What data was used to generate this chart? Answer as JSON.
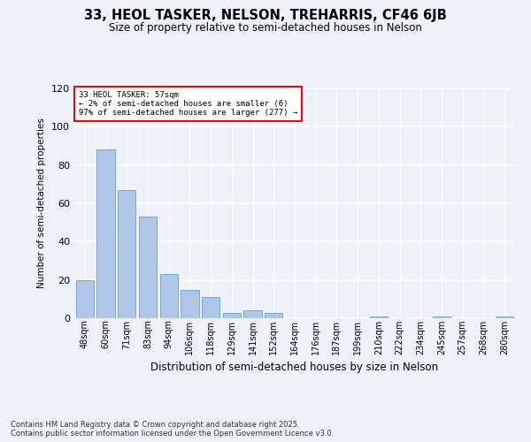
{
  "title": "33, HEOL TASKER, NELSON, TREHARRIS, CF46 6JB",
  "subtitle": "Size of property relative to semi-detached houses in Nelson",
  "xlabel": "Distribution of semi-detached houses by size in Nelson",
  "ylabel": "Number of semi-detached properties",
  "categories": [
    "48sqm",
    "60sqm",
    "71sqm",
    "83sqm",
    "94sqm",
    "106sqm",
    "118sqm",
    "129sqm",
    "141sqm",
    "152sqm",
    "164sqm",
    "176sqm",
    "187sqm",
    "199sqm",
    "210sqm",
    "222sqm",
    "234sqm",
    "245sqm",
    "257sqm",
    "268sqm",
    "280sqm"
  ],
  "values": [
    20,
    88,
    67,
    53,
    23,
    15,
    11,
    3,
    4,
    3,
    0,
    0,
    0,
    0,
    1,
    0,
    0,
    1,
    0,
    0,
    1
  ],
  "bar_color": "#aec6e8",
  "bar_edge_color": "#6a9fd0",
  "annotation_text_line1": "33 HEOL TASKER: 57sqm",
  "annotation_text_line2": "← 2% of semi-detached houses are smaller (6)",
  "annotation_text_line3": "97% of semi-detached houses are larger (277) →",
  "ylim": [
    0,
    120
  ],
  "yticks": [
    0,
    20,
    40,
    60,
    80,
    100,
    120
  ],
  "background_color": "#eef2f8",
  "plot_bg_color": "#eef2f8",
  "grid_color": "#ffffff",
  "footer_line1": "Contains HM Land Registry data © Crown copyright and database right 2025.",
  "footer_line2": "Contains public sector information licensed under the Open Government Licence v3.0."
}
